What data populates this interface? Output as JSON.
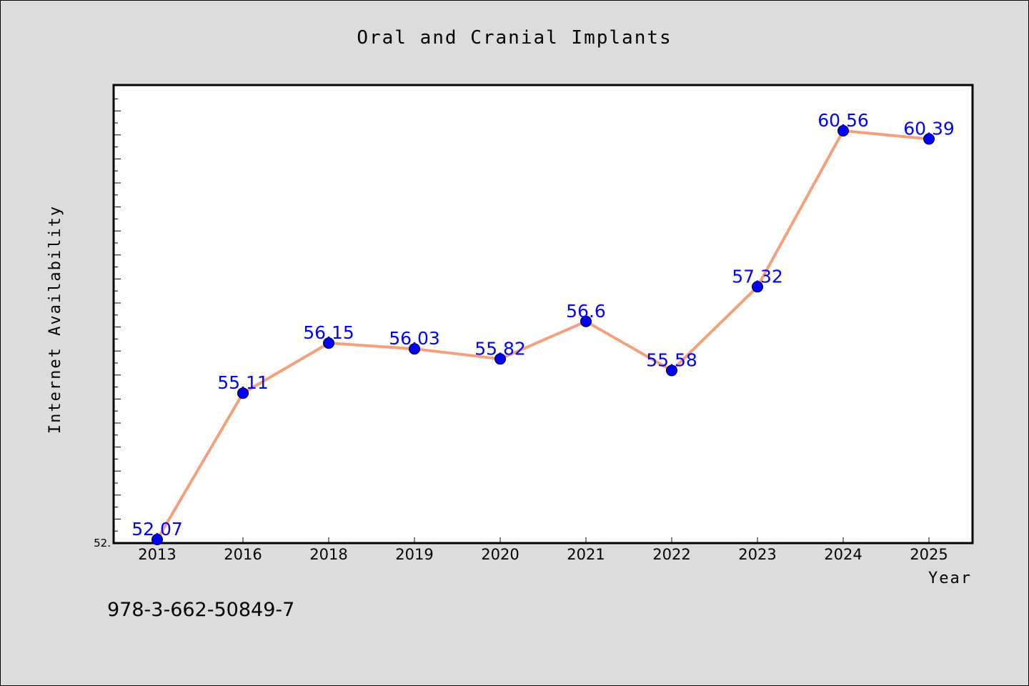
{
  "chart_data": {
    "type": "line",
    "title": "Oral and Cranial Implants",
    "xlabel": "Year",
    "ylabel": "Internet Availability",
    "categories": [
      "2013",
      "2016",
      "2018",
      "2019",
      "2020",
      "2021",
      "2022",
      "2023",
      "2024",
      "2025"
    ],
    "values": [
      52.07,
      55.11,
      56.15,
      56.03,
      55.82,
      56.6,
      55.58,
      57.32,
      60.56,
      60.39
    ],
    "data_labels": [
      "52.07",
      "55.11",
      "56.15",
      "56.03",
      "55.82",
      "56.6",
      "55.58",
      "57.32",
      "60.56",
      "60.39"
    ],
    "ylim": [
      52.07,
      61.56
    ],
    "y_tick_labels": [
      "52."
    ],
    "line_color": "#f4a07c",
    "marker_color": "#0000ff",
    "grid": false,
    "legend": "none"
  },
  "footnote": "978-3-662-50849-7"
}
